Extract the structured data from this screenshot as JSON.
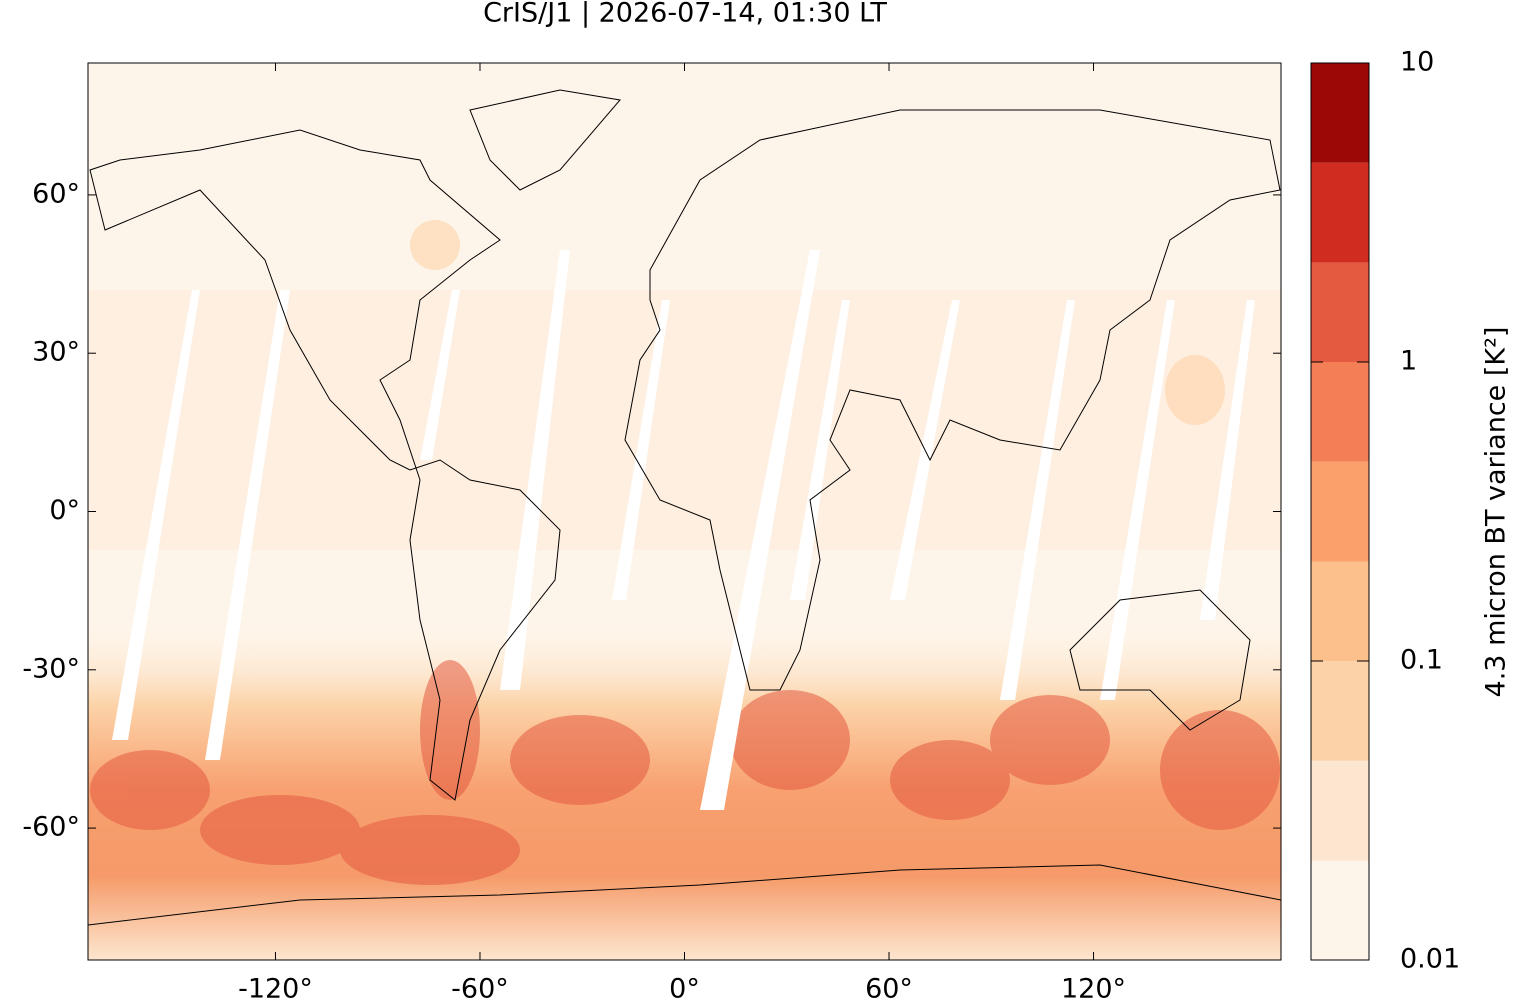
{
  "chart_data": {
    "type": "map",
    "title": "CrIS/J1 | 2026-07-14, 01:30 LT",
    "xlim": [
      -175,
      175
    ],
    "xticks": [
      {
        "value": -120,
        "label": "-120°"
      },
      {
        "value": -60,
        "label": "-60°"
      },
      {
        "value": 0,
        "label": "0°"
      },
      {
        "value": 60,
        "label": "60°"
      },
      {
        "value": 120,
        "label": "120°"
      }
    ],
    "ylim": [
      -85,
      85
    ],
    "yticks": [
      {
        "value": -60,
        "label": "-60°"
      },
      {
        "value": -30,
        "label": "-30°"
      },
      {
        "value": 0,
        "label": "0°"
      },
      {
        "value": 30,
        "label": "30°"
      },
      {
        "value": 60,
        "label": "60°"
      }
    ],
    "colorbar": {
      "label": "4.3 micron BT variance [K²]",
      "log": true,
      "lim": [
        0.01,
        10
      ],
      "ticks": [
        0.01,
        0.1,
        1,
        10
      ],
      "levels": [
        0.01,
        0.0215,
        0.0464,
        0.1,
        0.215,
        0.464,
        1,
        2.15,
        4.64,
        10
      ],
      "colors": [
        "#fef5ea",
        "#fde6cf",
        "#fcd3a8",
        "#fcc08c",
        "#fba06b",
        "#f47f57",
        "#e45a40",
        "#d02d20",
        "#9b0805"
      ]
    }
  }
}
